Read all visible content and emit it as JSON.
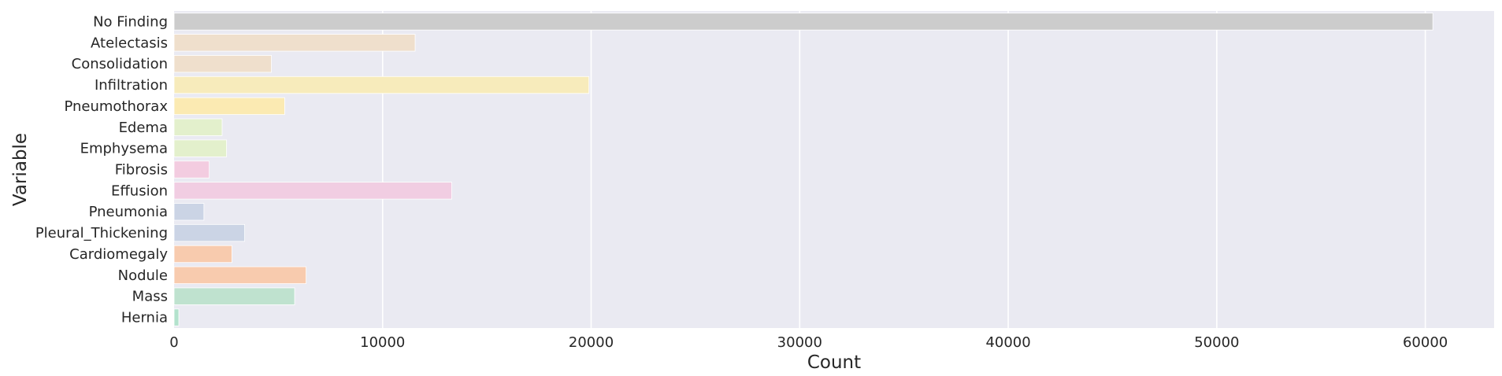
{
  "chart_data": {
    "type": "bar",
    "orientation": "horizontal",
    "title": "",
    "xlabel": "Count",
    "ylabel": "Variable",
    "xlim": [
      0,
      63300
    ],
    "xticks": [
      0,
      10000,
      20000,
      30000,
      40000,
      50000,
      60000
    ],
    "xtick_labels": [
      "0",
      "10000",
      "20000",
      "30000",
      "40000",
      "50000",
      "60000"
    ],
    "grid": true,
    "categories": [
      "No Finding",
      "Atelectasis",
      "Consolidation",
      "Infiltration",
      "Pneumothorax",
      "Edema",
      "Emphysema",
      "Fibrosis",
      "Effusion",
      "Pneumonia",
      "Pleural_Thickening",
      "Cardiomegaly",
      "Nodule",
      "Mass",
      "Hernia"
    ],
    "values": [
      60361,
      11559,
      4667,
      19894,
      5302,
      2303,
      2516,
      1686,
      13317,
      1431,
      3385,
      2776,
      6331,
      5782,
      227
    ],
    "colors": [
      "#cccccc",
      "#efdfcc",
      "#efdfcc",
      "#f7ebbb",
      "#fbeab2",
      "#e3f0cc",
      "#e3f0cc",
      "#f3cce0",
      "#f1cde2",
      "#cbd4e5",
      "#cbd4e5",
      "#f8cbae",
      "#f8cbae",
      "#bfe2cf",
      "#b3e2cd"
    ],
    "background_color": "#eaeaf2",
    "grid_color": "#ffffff"
  }
}
